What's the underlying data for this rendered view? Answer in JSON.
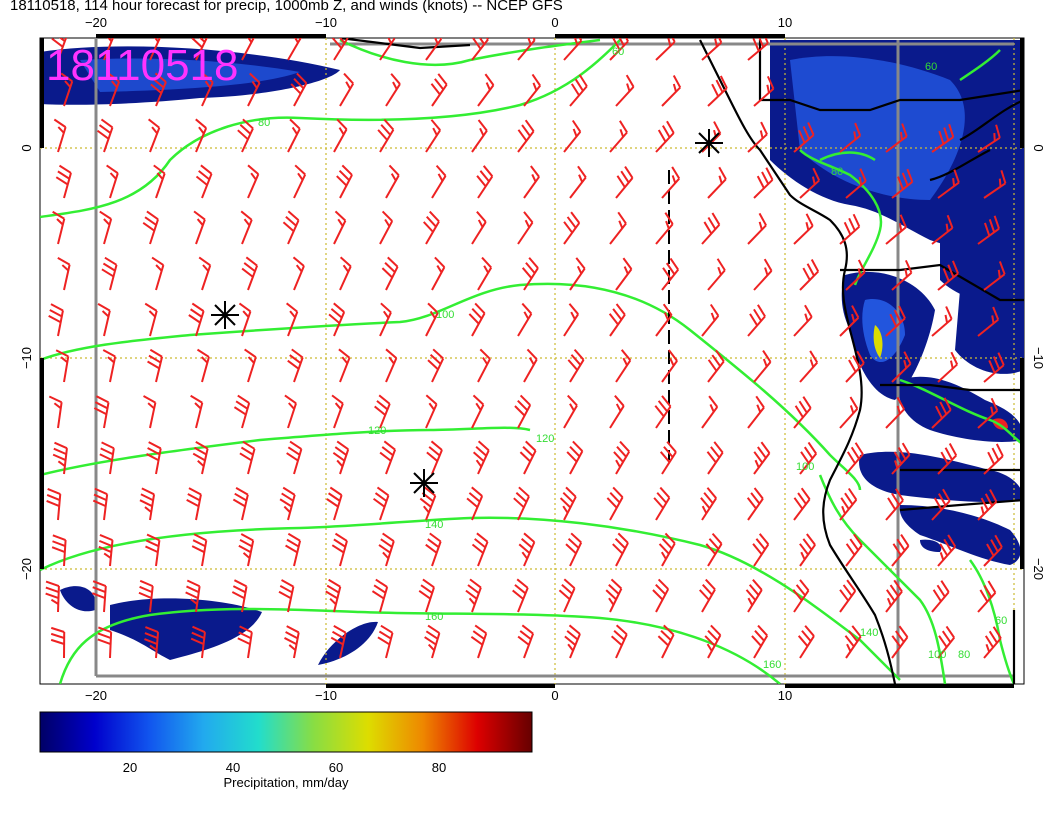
{
  "title": "18110518, 114 hour forecast for precip, 1000mb Z, and winds (knots) -- NCEP GFS",
  "stamp": "18110518",
  "map": {
    "lon_ticks": [
      "−20",
      "−10",
      "0",
      "10"
    ],
    "lat_ticks": [
      "0",
      "−10",
      "−20"
    ],
    "contour_labels": [
      "60",
      "80",
      "100",
      "120",
      "120",
      "140",
      "160",
      "160",
      "100",
      "140",
      "100",
      "80",
      "60",
      "80",
      "60"
    ],
    "colors": {
      "precip_low": "#0a1a8c",
      "precip_mid": "#2255dd",
      "contour": "#33ee33",
      "wind_barb": "#ee2222",
      "coast": "#000000",
      "grid": "#ccbb33",
      "stamp": "#ff33ff"
    }
  },
  "colorbar": {
    "label": "Precipitation, mm/day",
    "ticks": [
      "20",
      "40",
      "60",
      "80"
    ],
    "stops": [
      "#000066",
      "#0000cc",
      "#1155ee",
      "#22aaee",
      "#22ddcc",
      "#88dd44",
      "#dddd00",
      "#ee8800",
      "#dd0000",
      "#660000"
    ]
  }
}
